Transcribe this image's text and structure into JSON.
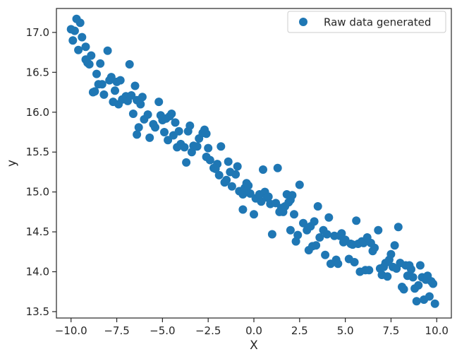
{
  "chart_data": {
    "type": "scatter",
    "xlabel": "X",
    "ylabel": "y",
    "xlim": [
      -10.8,
      10.8
    ],
    "ylim": [
      13.42,
      17.3
    ],
    "xticks": [
      -10.0,
      -7.5,
      -5.0,
      -2.5,
      0.0,
      2.5,
      5.0,
      7.5,
      10.0
    ],
    "yticks": [
      13.5,
      14.0,
      14.5,
      15.0,
      15.5,
      16.0,
      16.5,
      17.0
    ],
    "xtick_labels": [
      "−10.0",
      "−7.5",
      "−5.0",
      "−2.5",
      "0.0",
      "2.5",
      "5.0",
      "7.5",
      "10.0"
    ],
    "ytick_labels": [
      "13.5",
      "14.0",
      "14.5",
      "15.0",
      "15.5",
      "16.0",
      "16.5",
      "17.0"
    ],
    "grid": false,
    "legend": {
      "position": "top-right",
      "entries": [
        "Raw data generated"
      ]
    },
    "series": [
      {
        "name": "Raw data generated",
        "color": "#1f77b4",
        "points": [
          [
            -10.0,
            17.04
          ],
          [
            -9.8,
            17.02
          ],
          [
            -9.9,
            16.9
          ],
          [
            -9.6,
            16.78
          ],
          [
            -9.4,
            16.94
          ],
          [
            -9.5,
            17.12
          ],
          [
            -9.7,
            17.17
          ],
          [
            -9.2,
            16.82
          ],
          [
            -9.1,
            16.62
          ],
          [
            -9.0,
            16.6
          ],
          [
            -8.9,
            16.71
          ],
          [
            -9.2,
            16.66
          ],
          [
            -8.6,
            16.48
          ],
          [
            -8.4,
            16.61
          ],
          [
            -8.0,
            16.77
          ],
          [
            -8.5,
            16.35
          ],
          [
            -8.7,
            16.26
          ],
          [
            -8.8,
            16.25
          ],
          [
            -8.2,
            16.22
          ],
          [
            -8.3,
            16.35
          ],
          [
            -7.8,
            16.44
          ],
          [
            -7.9,
            16.4
          ],
          [
            -7.5,
            16.38
          ],
          [
            -7.3,
            16.4
          ],
          [
            -7.6,
            16.27
          ],
          [
            -7.0,
            16.2
          ],
          [
            -7.2,
            16.16
          ],
          [
            -7.4,
            16.1
          ],
          [
            -6.8,
            16.6
          ],
          [
            -6.7,
            16.21
          ],
          [
            -6.5,
            16.33
          ],
          [
            -6.9,
            16.14
          ],
          [
            -7.7,
            16.13
          ],
          [
            -6.4,
            16.15
          ],
          [
            -6.1,
            16.19
          ],
          [
            -6.6,
            15.98
          ],
          [
            -6.2,
            16.1
          ],
          [
            -6.3,
            15.81
          ],
          [
            -6.0,
            15.91
          ],
          [
            -5.8,
            15.97
          ],
          [
            -6.4,
            15.72
          ],
          [
            -5.7,
            15.68
          ],
          [
            -5.4,
            15.81
          ],
          [
            -5.2,
            16.13
          ],
          [
            -5.1,
            15.96
          ],
          [
            -5.0,
            15.9
          ],
          [
            -4.8,
            15.92
          ],
          [
            -4.6,
            15.95
          ],
          [
            -4.5,
            15.98
          ],
          [
            -4.3,
            15.87
          ],
          [
            -5.5,
            15.85
          ],
          [
            -4.9,
            15.75
          ],
          [
            -4.7,
            15.65
          ],
          [
            -4.4,
            15.71
          ],
          [
            -4.0,
            15.6
          ],
          [
            -3.8,
            15.56
          ],
          [
            -4.2,
            15.56
          ],
          [
            -4.1,
            15.76
          ],
          [
            -3.6,
            15.76
          ],
          [
            -3.5,
            15.83
          ],
          [
            -3.3,
            15.58
          ],
          [
            -3.0,
            15.67
          ],
          [
            -2.8,
            15.74
          ],
          [
            -2.7,
            15.78
          ],
          [
            -2.6,
            15.73
          ],
          [
            -3.4,
            15.5
          ],
          [
            -3.1,
            15.57
          ],
          [
            -3.7,
            15.37
          ],
          [
            -2.5,
            15.55
          ],
          [
            -2.4,
            15.4
          ],
          [
            -2.2,
            15.3
          ],
          [
            -2.0,
            15.35
          ],
          [
            -1.9,
            15.21
          ],
          [
            -1.8,
            15.57
          ],
          [
            -2.6,
            15.44
          ],
          [
            -2.1,
            15.29
          ],
          [
            -1.5,
            15.15
          ],
          [
            -1.4,
            15.38
          ],
          [
            -1.3,
            15.25
          ],
          [
            -1.2,
            15.07
          ],
          [
            -1.6,
            15.12
          ],
          [
            -1.0,
            15.22
          ],
          [
            -0.9,
            15.32
          ],
          [
            -0.8,
            15.01
          ],
          [
            -0.6,
            14.97
          ],
          [
            -0.5,
            15.05
          ],
          [
            -0.4,
            15.11
          ],
          [
            -0.3,
            15.08
          ],
          [
            -0.6,
            14.78
          ],
          [
            -0.2,
            14.98
          ],
          [
            0.0,
            14.72
          ],
          [
            0.1,
            14.92
          ],
          [
            0.3,
            14.97
          ],
          [
            0.4,
            14.88
          ],
          [
            0.6,
            15.0
          ],
          [
            0.7,
            14.93
          ],
          [
            0.8,
            14.94
          ],
          [
            0.9,
            14.85
          ],
          [
            0.5,
            15.28
          ],
          [
            1.0,
            14.47
          ],
          [
            1.2,
            14.86
          ],
          [
            1.3,
            15.3
          ],
          [
            1.5,
            14.8
          ],
          [
            1.4,
            14.75
          ],
          [
            1.6,
            14.75
          ],
          [
            1.7,
            14.82
          ],
          [
            1.8,
            14.97
          ],
          [
            1.9,
            14.87
          ],
          [
            2.0,
            14.9
          ],
          [
            2.1,
            14.96
          ],
          [
            2.0,
            14.52
          ],
          [
            2.2,
            14.72
          ],
          [
            2.3,
            14.38
          ],
          [
            2.4,
            14.46
          ],
          [
            2.5,
            15.09
          ],
          [
            2.7,
            14.61
          ],
          [
            2.9,
            14.52
          ],
          [
            3.0,
            14.27
          ],
          [
            3.1,
            14.57
          ],
          [
            3.3,
            14.63
          ],
          [
            3.2,
            14.32
          ],
          [
            3.4,
            14.33
          ],
          [
            3.5,
            14.82
          ],
          [
            3.6,
            14.43
          ],
          [
            3.8,
            14.52
          ],
          [
            3.9,
            14.21
          ],
          [
            4.0,
            14.47
          ],
          [
            4.1,
            14.68
          ],
          [
            4.2,
            14.1
          ],
          [
            4.4,
            14.45
          ],
          [
            4.5,
            14.15
          ],
          [
            4.6,
            14.1
          ],
          [
            4.7,
            14.45
          ],
          [
            4.8,
            14.48
          ],
          [
            4.9,
            14.37
          ],
          [
            5.0,
            14.4
          ],
          [
            5.2,
            14.16
          ],
          [
            5.3,
            14.35
          ],
          [
            5.4,
            14.34
          ],
          [
            5.6,
            14.64
          ],
          [
            5.5,
            14.12
          ],
          [
            5.7,
            14.35
          ],
          [
            5.8,
            14.0
          ],
          [
            5.9,
            14.38
          ],
          [
            6.0,
            14.36
          ],
          [
            6.1,
            14.02
          ],
          [
            6.2,
            14.43
          ],
          [
            6.3,
            14.02
          ],
          [
            6.4,
            14.36
          ],
          [
            6.5,
            14.26
          ],
          [
            6.6,
            14.3
          ],
          [
            6.8,
            14.52
          ],
          [
            6.9,
            14.04
          ],
          [
            7.0,
            13.96
          ],
          [
            7.1,
            14.06
          ],
          [
            7.2,
            14.11
          ],
          [
            7.3,
            13.94
          ],
          [
            7.4,
            14.15
          ],
          [
            7.5,
            14.22
          ],
          [
            7.6,
            14.06
          ],
          [
            7.7,
            14.33
          ],
          [
            7.8,
            14.04
          ],
          [
            7.9,
            14.56
          ],
          [
            8.0,
            14.11
          ],
          [
            8.1,
            13.81
          ],
          [
            8.2,
            13.78
          ],
          [
            8.3,
            14.08
          ],
          [
            8.4,
            13.95
          ],
          [
            8.5,
            14.08
          ],
          [
            8.6,
            14.03
          ],
          [
            8.7,
            13.93
          ],
          [
            8.8,
            13.79
          ],
          [
            8.9,
            13.63
          ],
          [
            9.0,
            13.83
          ],
          [
            9.1,
            14.08
          ],
          [
            9.2,
            13.93
          ],
          [
            9.3,
            13.65
          ],
          [
            9.4,
            13.9
          ],
          [
            9.5,
            13.95
          ],
          [
            9.6,
            13.69
          ],
          [
            9.7,
            13.88
          ],
          [
            9.8,
            13.85
          ],
          [
            9.9,
            13.6
          ]
        ]
      }
    ]
  }
}
